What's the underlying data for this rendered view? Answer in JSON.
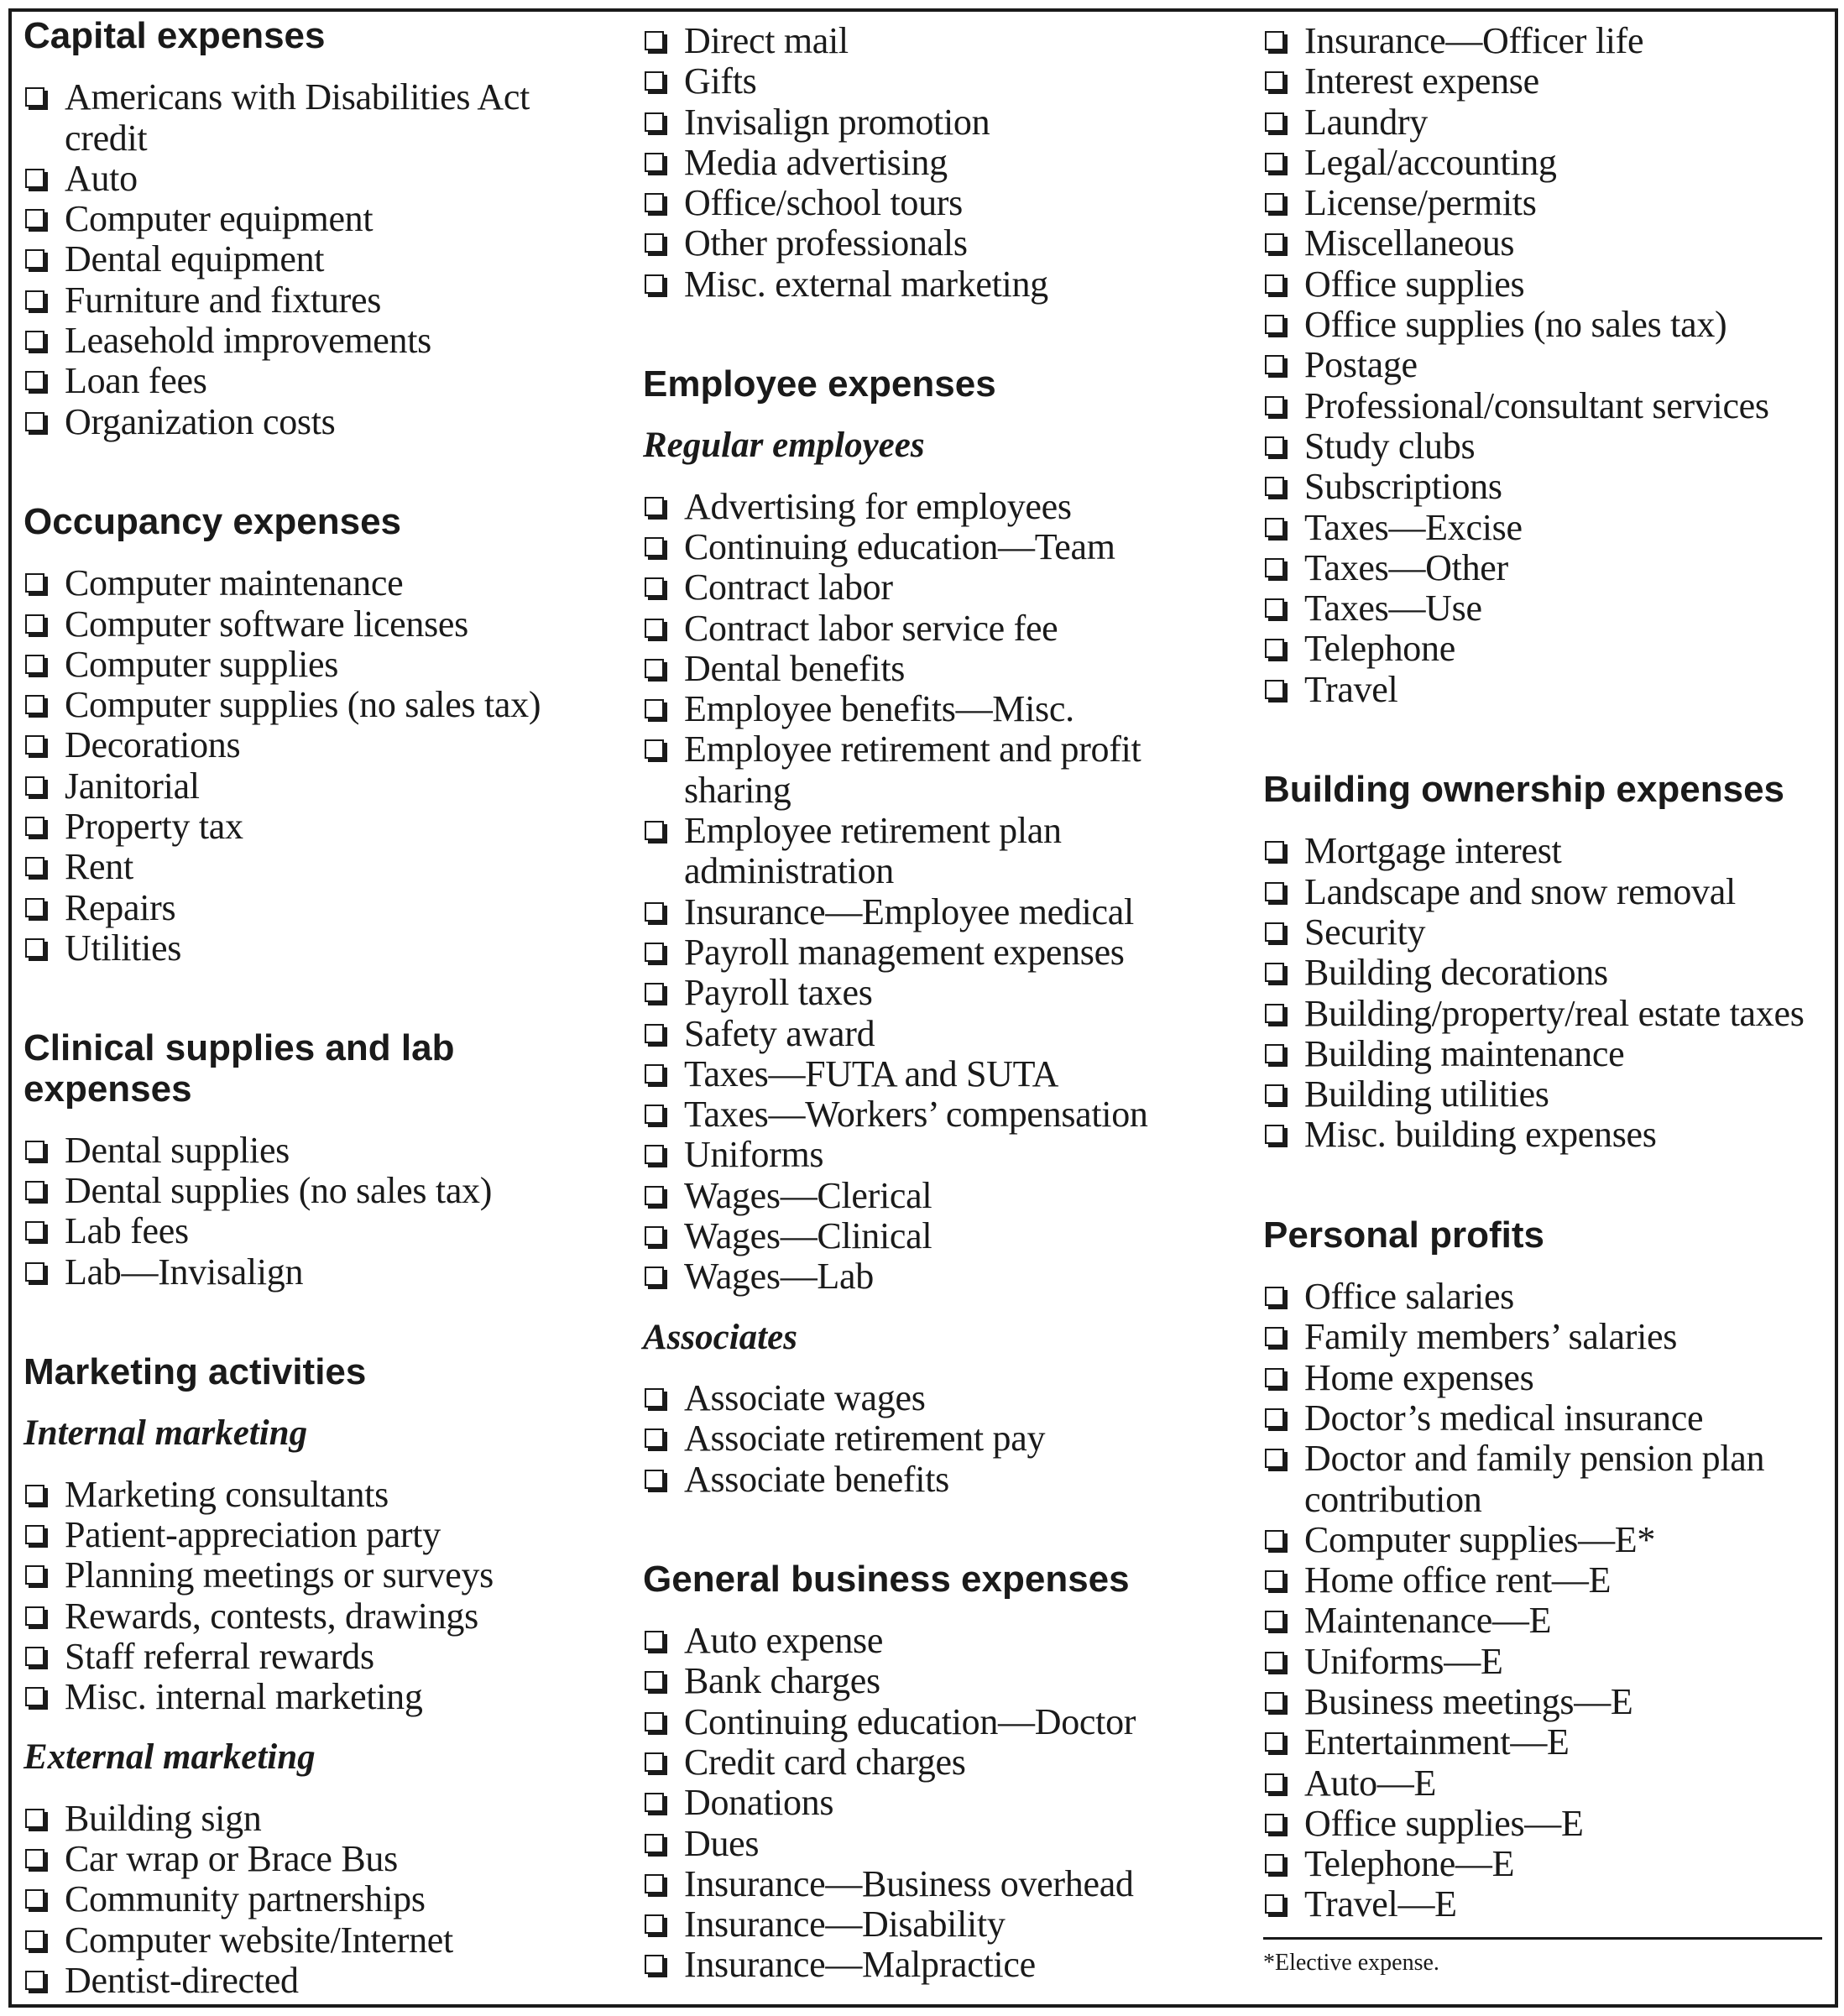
{
  "columns": [
    {
      "blocks": [
        {
          "type": "heading",
          "text": "Capital expenses"
        },
        {
          "type": "items",
          "items": [
            "Americans with Disabilities Act credit",
            "Auto",
            "Computer equipment",
            "Dental equipment",
            "Furniture and fixtures",
            "Leasehold improvements",
            "Loan fees",
            "Organization costs"
          ]
        },
        {
          "type": "heading",
          "text": "Occupancy expenses"
        },
        {
          "type": "items",
          "items": [
            "Computer maintenance",
            "Computer software licenses",
            "Computer supplies",
            "Computer supplies (no sales tax)",
            "Decorations",
            "Janitorial",
            "Property tax",
            "Rent",
            "Repairs",
            "Utilities"
          ]
        },
        {
          "type": "heading",
          "text": "Clinical supplies and lab expenses"
        },
        {
          "type": "items",
          "items": [
            "Dental supplies",
            "Dental supplies (no sales tax)",
            "Lab fees",
            "Lab—Invisalign"
          ]
        },
        {
          "type": "heading",
          "text": "Marketing activities"
        },
        {
          "type": "subheading",
          "text": "Internal marketing"
        },
        {
          "type": "items",
          "items": [
            "Marketing consultants",
            "Patient-appreciation party",
            "Planning meetings or surveys",
            "Rewards, contests, drawings",
            "Staff referral rewards",
            "Misc. internal marketing"
          ]
        },
        {
          "type": "subheading",
          "text": "External marketing"
        },
        {
          "type": "items",
          "items": [
            "Building sign",
            "Car wrap or Brace Bus",
            "Community partnerships",
            "Computer website/Internet",
            "Dentist-directed"
          ]
        }
      ]
    },
    {
      "blocks": [
        {
          "type": "items",
          "items": [
            "Direct mail",
            "Gifts",
            "Invisalign promotion",
            "Media advertising",
            "Office/school tours",
            "Other professionals",
            "Misc. external marketing"
          ]
        },
        {
          "type": "heading",
          "text": "Employee expenses"
        },
        {
          "type": "subheading",
          "text": "Regular employees"
        },
        {
          "type": "items",
          "items": [
            "Advertising for employees",
            "Continuing education—Team",
            "Contract labor",
            "Contract labor service fee",
            "Dental benefits",
            "Employee benefits—Misc.",
            "Employee retirement and profit sharing",
            "Employee retirement plan administration",
            "Insurance—Employee medical",
            "Payroll management expenses",
            "Payroll taxes",
            "Safety award",
            "Taxes—FUTA and SUTA",
            "Taxes—Workers’ compensation",
            "Uniforms",
            "Wages—Clerical",
            "Wages—Clinical",
            "Wages—Lab"
          ]
        },
        {
          "type": "subheading",
          "text": "Associates"
        },
        {
          "type": "items",
          "items": [
            "Associate wages",
            "Associate retirement pay",
            "Associate benefits"
          ]
        },
        {
          "type": "heading",
          "text": "General business expenses"
        },
        {
          "type": "items",
          "items": [
            "Auto expense",
            "Bank charges",
            "Continuing education—Doctor",
            "Credit card charges",
            "Donations",
            "Dues",
            "Insurance—Business overhead",
            "Insurance—Disability",
            "Insurance—Malpractice"
          ]
        }
      ]
    },
    {
      "blocks": [
        {
          "type": "items",
          "items": [
            "Insurance—Officer life",
            "Interest expense",
            "Laundry",
            "Legal/accounting",
            "License/permits",
            "Miscellaneous",
            "Office supplies",
            "Office supplies (no sales tax)",
            "Postage",
            "Professional/consultant services",
            "Study clubs",
            "Subscriptions",
            "Taxes—Excise",
            "Taxes—Other",
            "Taxes—Use",
            "Telephone",
            "Travel"
          ]
        },
        {
          "type": "heading",
          "text": "Building ownership expenses"
        },
        {
          "type": "items",
          "items": [
            "Mortgage interest",
            "Landscape and snow removal",
            "Security",
            "Building decorations",
            "Building/property/real estate taxes",
            "Building maintenance",
            "Building utilities",
            "Misc. building expenses"
          ]
        },
        {
          "type": "heading",
          "text": "Personal profits"
        },
        {
          "type": "items",
          "items": [
            "Office salaries",
            "Family members’ salaries",
            "Home expenses",
            "Doctor’s medical insurance",
            "Doctor and family pension plan contribution",
            "Computer supplies—E*",
            "Home office rent—E",
            "Maintenance—E",
            "Uniforms—E",
            "Business meetings—E",
            "Entertainment—E",
            "Auto—E",
            "Office supplies—E",
            "Telephone—E",
            "Travel—E"
          ]
        }
      ],
      "footnote": "*Elective expense."
    }
  ]
}
